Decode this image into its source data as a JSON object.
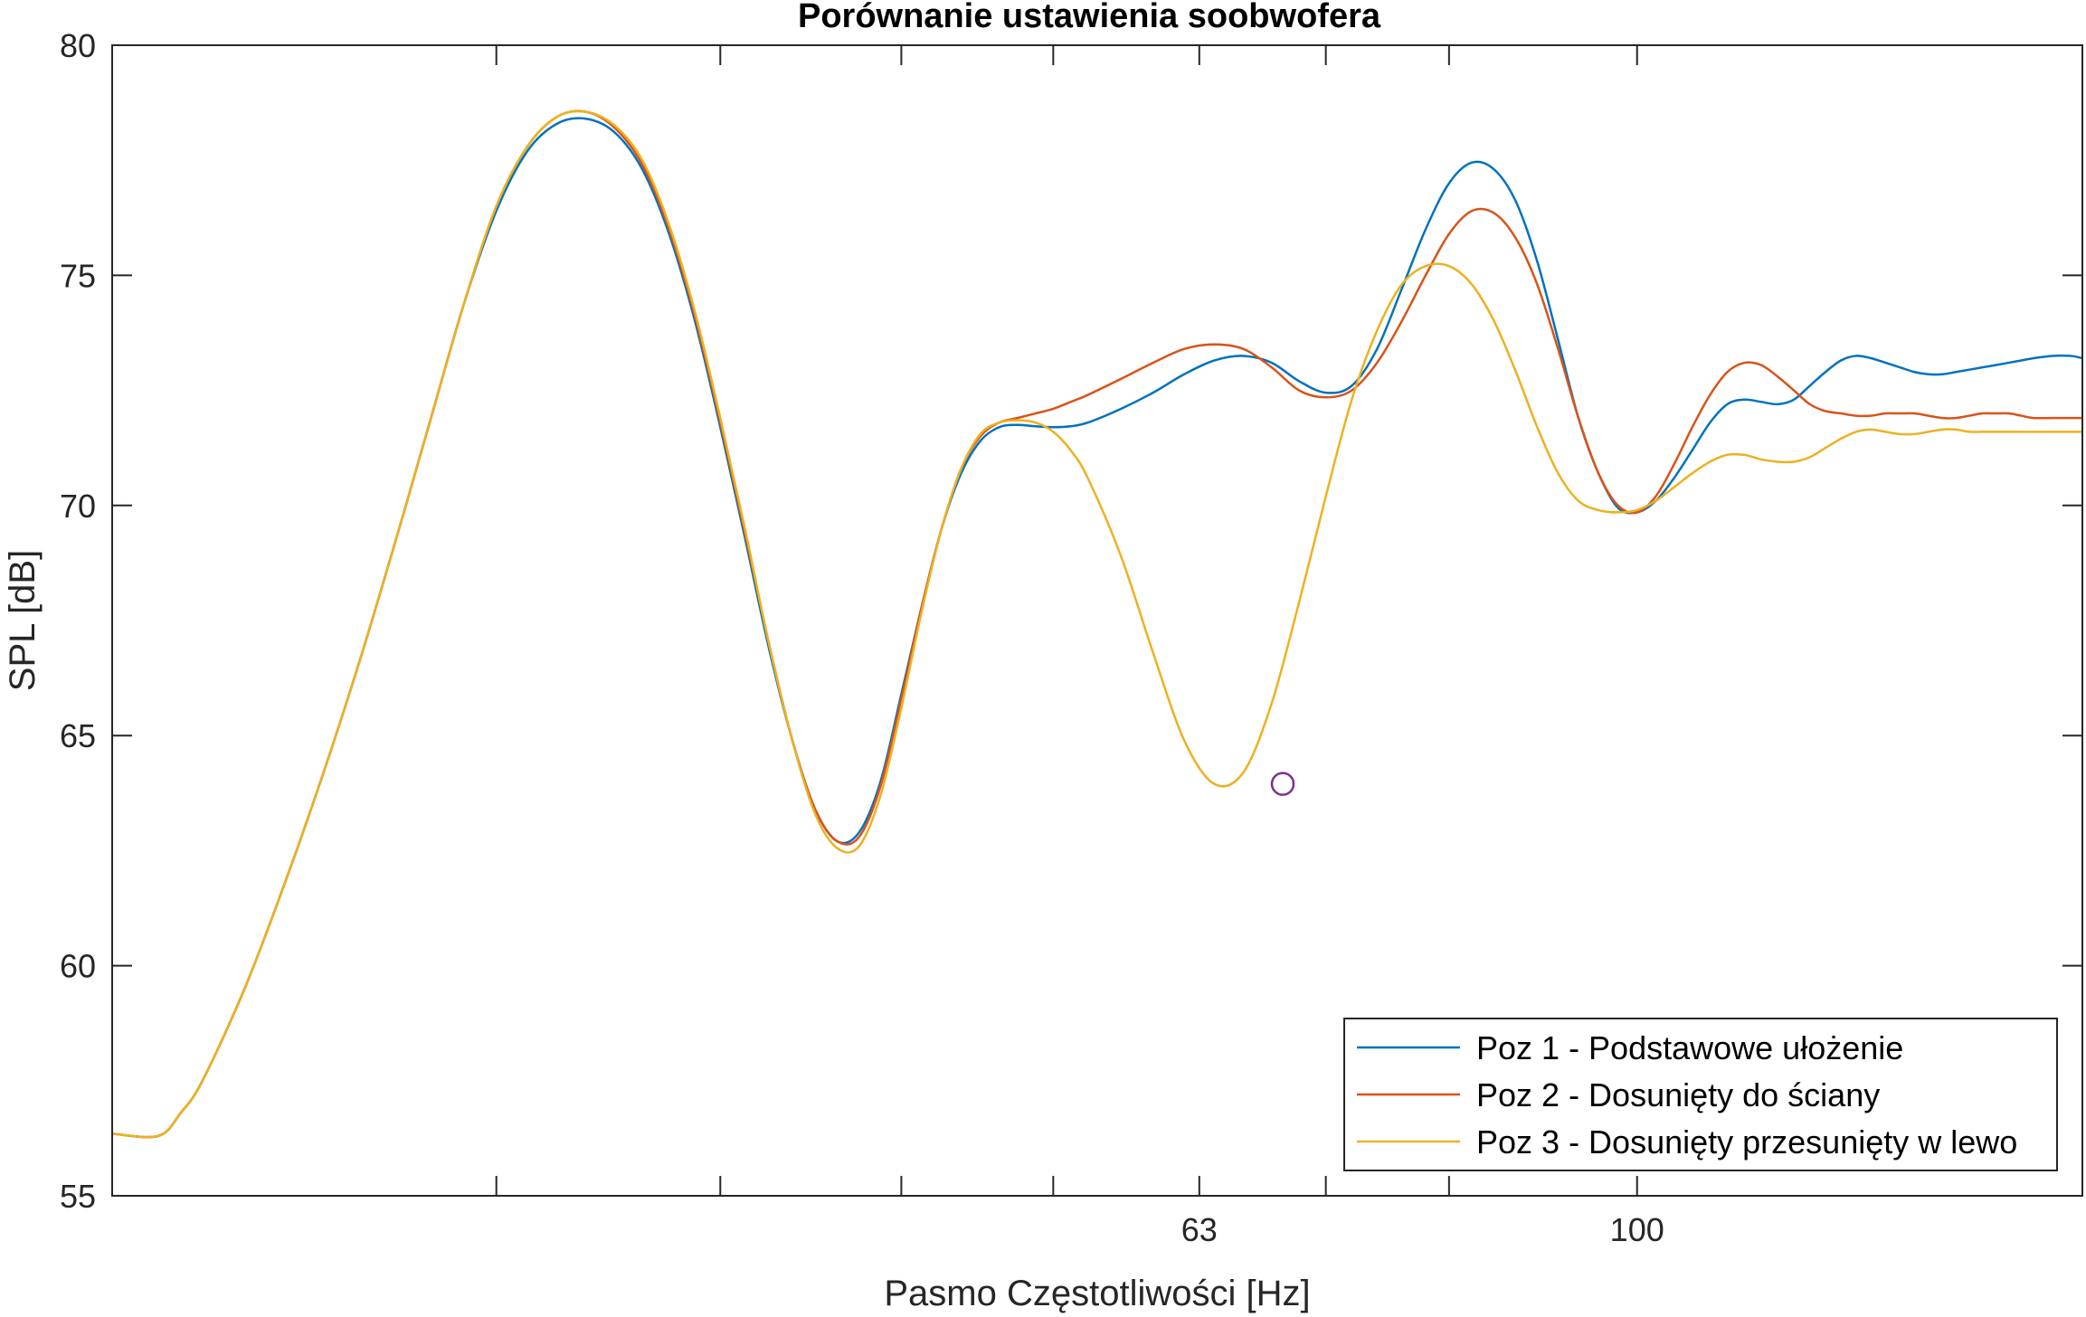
{
  "chart_data": {
    "type": "line",
    "title": "Porównanie ustawienia soobwofera",
    "xlabel": "Pasmo Częstotliwości [Hz]",
    "ylabel": "SPL [dB]",
    "x_scale": "log",
    "xlim": [
      20,
      160
    ],
    "ylim": [
      55,
      80
    ],
    "y_ticks": [
      55,
      60,
      65,
      70,
      75,
      80
    ],
    "x_ticks": [
      30,
      38,
      46,
      54,
      63,
      72,
      82,
      100
    ],
    "x_tick_labels": [
      "",
      "",
      "",
      "",
      "63",
      "",
      "",
      "100"
    ],
    "grid": false,
    "legend_position": "bottom-right",
    "series": [
      {
        "name": "Poz 1 - Podstawowe ułożenie",
        "color": "#0072BD",
        "x": [
          20,
          21,
          21.5,
          22,
          23,
          24,
          25,
          26,
          27,
          28,
          29,
          30,
          31,
          32,
          33,
          34,
          35,
          36,
          37,
          38,
          39,
          40,
          41,
          42,
          43,
          44,
          45,
          46,
          47,
          48,
          49,
          50,
          51,
          52,
          53,
          54,
          55,
          56,
          58,
          60,
          62,
          64,
          66,
          68,
          70,
          72,
          74,
          76,
          78,
          80,
          82,
          84,
          86,
          88,
          90,
          92,
          94,
          96,
          98,
          100,
          102,
          104,
          106,
          108,
          110,
          112,
          114,
          116,
          118,
          120,
          122,
          124,
          126,
          128,
          130,
          132,
          134,
          136,
          138,
          140,
          142,
          144,
          146,
          148,
          150,
          152,
          155,
          158,
          160
        ],
        "values": [
          56.35,
          56.3,
          56.8,
          57.5,
          59.5,
          61.8,
          64.2,
          66.7,
          69.3,
          71.9,
          74.4,
          76.4,
          77.7,
          78.3,
          78.4,
          78.1,
          77.3,
          75.9,
          74.0,
          71.7,
          69.3,
          66.9,
          64.9,
          63.4,
          62.7,
          62.9,
          64.0,
          65.9,
          67.8,
          69.5,
          70.7,
          71.4,
          71.7,
          71.75,
          71.72,
          71.7,
          71.72,
          71.8,
          72.1,
          72.45,
          72.85,
          73.15,
          73.25,
          73.1,
          72.7,
          72.45,
          72.6,
          73.4,
          74.7,
          76.0,
          77.0,
          77.45,
          77.3,
          76.6,
          75.3,
          73.6,
          71.9,
          70.7,
          69.95,
          69.85,
          70.1,
          70.6,
          71.2,
          71.8,
          72.2,
          72.3,
          72.25,
          72.2,
          72.3,
          72.6,
          72.9,
          73.15,
          73.25,
          73.2,
          73.1,
          73.0,
          72.9,
          72.85,
          72.85,
          72.9,
          72.95,
          73.0,
          73.05,
          73.1,
          73.15,
          73.2,
          73.25,
          73.25,
          73.2
        ]
      },
      {
        "name": "Poz 2 - Dosunięty do ściany",
        "color": "#D95319",
        "x": [
          20,
          21,
          21.5,
          22,
          23,
          24,
          25,
          26,
          27,
          28,
          29,
          30,
          31,
          32,
          33,
          34,
          35,
          36,
          37,
          38,
          39,
          40,
          41,
          42,
          43,
          44,
          45,
          46,
          47,
          48,
          49,
          50,
          51,
          52,
          53,
          54,
          55,
          56,
          58,
          60,
          62,
          64,
          66,
          68,
          70,
          72,
          74,
          76,
          78,
          80,
          82,
          84,
          86,
          88,
          90,
          92,
          94,
          96,
          98,
          100,
          102,
          104,
          106,
          108,
          110,
          112,
          114,
          116,
          118,
          120,
          122,
          124,
          126,
          128,
          130,
          132,
          134,
          136,
          138,
          140,
          142,
          144,
          146,
          148,
          150,
          152,
          155,
          158,
          160
        ],
        "values": [
          56.35,
          56.3,
          56.8,
          57.5,
          59.5,
          61.8,
          64.2,
          66.7,
          69.3,
          71.9,
          74.4,
          76.5,
          77.8,
          78.45,
          78.55,
          78.2,
          77.4,
          76.0,
          74.1,
          71.8,
          69.4,
          67.0,
          64.9,
          63.4,
          62.7,
          62.8,
          63.9,
          65.8,
          67.8,
          69.5,
          70.8,
          71.5,
          71.8,
          71.9,
          72.0,
          72.1,
          72.25,
          72.4,
          72.75,
          73.1,
          73.4,
          73.5,
          73.4,
          73.0,
          72.5,
          72.35,
          72.5,
          73.1,
          74.0,
          75.0,
          75.9,
          76.4,
          76.35,
          75.8,
          74.8,
          73.4,
          71.9,
          70.7,
          70.0,
          69.85,
          70.2,
          70.9,
          71.7,
          72.4,
          72.9,
          73.1,
          73.05,
          72.8,
          72.5,
          72.2,
          72.05,
          72.0,
          71.95,
          71.95,
          72.0,
          72.0,
          72.0,
          71.95,
          71.9,
          71.9,
          71.95,
          72.0,
          72.0,
          72.0,
          71.95,
          71.9,
          71.9,
          71.9,
          71.9
        ]
      },
      {
        "name": "Poz 3 - Dosunięty przesunięty w lewo",
        "color": "#EDB120",
        "x": [
          20,
          21,
          21.5,
          22,
          23,
          24,
          25,
          26,
          27,
          28,
          29,
          30,
          31,
          32,
          33,
          34,
          35,
          36,
          37,
          38,
          39,
          40,
          41,
          42,
          43,
          44,
          45,
          46,
          47,
          48,
          49,
          50,
          51,
          52,
          53,
          54,
          55,
          56,
          58,
          60,
          62,
          64,
          66,
          68,
          70,
          72,
          74,
          76,
          78,
          80,
          82,
          84,
          86,
          88,
          90,
          92,
          94,
          96,
          98,
          100,
          102,
          104,
          106,
          108,
          110,
          112,
          114,
          116,
          118,
          120,
          122,
          124,
          126,
          128,
          130,
          132,
          134,
          136,
          138,
          140,
          142,
          144,
          146,
          148,
          150,
          152,
          155,
          158,
          160
        ],
        "values": [
          56.35,
          56.3,
          56.8,
          57.5,
          59.5,
          61.8,
          64.2,
          66.7,
          69.3,
          71.9,
          74.4,
          76.5,
          77.8,
          78.45,
          78.55,
          78.25,
          77.5,
          76.1,
          74.2,
          71.9,
          69.5,
          67.0,
          64.9,
          63.3,
          62.55,
          62.6,
          63.7,
          65.6,
          67.7,
          69.5,
          70.8,
          71.55,
          71.8,
          71.85,
          71.8,
          71.6,
          71.2,
          70.6,
          68.9,
          66.8,
          64.9,
          63.95,
          64.2,
          65.7,
          67.9,
          70.2,
          72.3,
          73.8,
          74.8,
          75.2,
          75.2,
          74.8,
          74.0,
          72.9,
          71.7,
          70.7,
          70.1,
          69.9,
          69.85,
          69.9,
          70.1,
          70.4,
          70.7,
          70.95,
          71.1,
          71.1,
          71.0,
          70.95,
          70.95,
          71.05,
          71.25,
          71.45,
          71.6,
          71.65,
          71.6,
          71.55,
          71.55,
          71.6,
          71.65,
          71.65,
          71.6,
          71.6,
          71.6,
          71.6,
          71.6,
          71.6,
          71.6,
          71.6,
          71.6
        ]
      }
    ],
    "marker": {
      "x": 68.8,
      "y": 63.95,
      "shape": "circle",
      "color": "#7E2F8E"
    }
  }
}
